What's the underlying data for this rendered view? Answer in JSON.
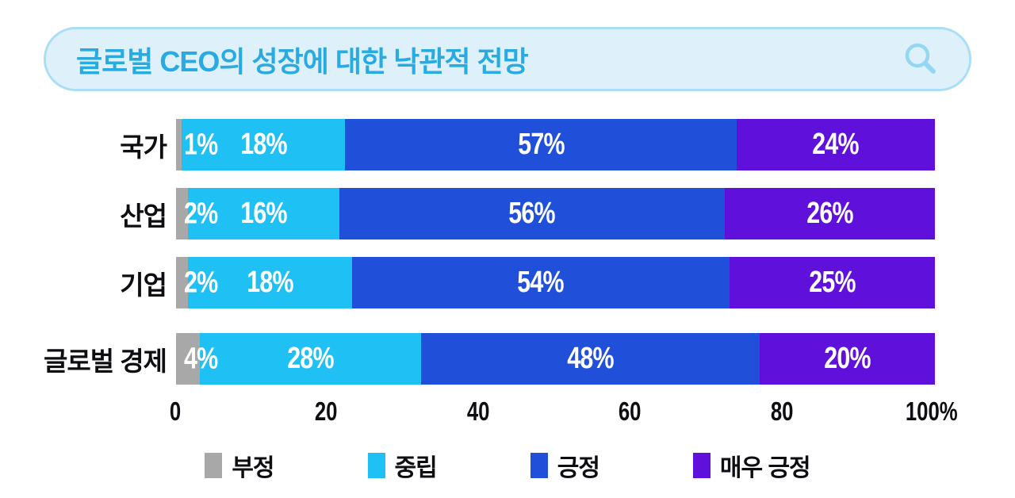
{
  "title": {
    "text": "글로벌 CEO의 성장에 대한 낙관적 전망"
  },
  "chart_data": {
    "type": "bar",
    "orientation": "horizontal",
    "stacked": true,
    "title": "글로벌 CEO의 성장에 대한 낙관적 전망",
    "categories": [
      "국가",
      "산업",
      "기업",
      "글로벌 경제"
    ],
    "series": [
      {
        "key": "negative",
        "name": "부정",
        "color": "#a8a8a8",
        "values": [
          1,
          2,
          2,
          4
        ]
      },
      {
        "key": "neutral",
        "name": "중립",
        "color": "#1fc0f4",
        "values": [
          18,
          16,
          18,
          28
        ]
      },
      {
        "key": "positive",
        "name": "긍정",
        "color": "#2050da",
        "values": [
          57,
          56,
          54,
          48
        ]
      },
      {
        "key": "very-positive",
        "name": "매우 긍정",
        "color": "#5f10da",
        "values": [
          24,
          26,
          25,
          20
        ]
      }
    ],
    "value_label_suffix": "%",
    "x_ticks": [
      "0",
      "20",
      "40",
      "60",
      "80",
      "100%"
    ],
    "x_tick_values": [
      0,
      20,
      40,
      60,
      80,
      100
    ],
    "xlim": [
      0,
      100
    ],
    "grid": false,
    "legend_position": "bottom",
    "colors": {
      "title_text": "#29abe2",
      "title_pill_bg": "#def1fb",
      "title_pill_border": "#a9def4",
      "bar_value_text": "#ffffff",
      "axis_text": "#0d0d12"
    }
  }
}
